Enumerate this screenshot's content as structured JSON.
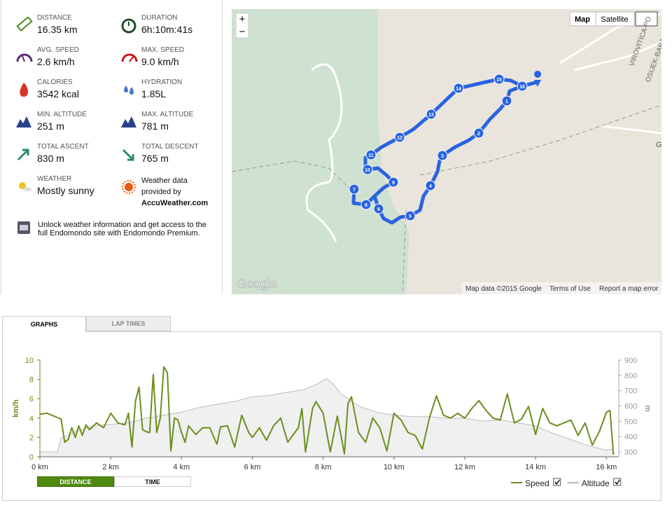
{
  "stats": [
    {
      "label": "DISTANCE",
      "value": "16.35 km"
    },
    {
      "label": "DURATION",
      "value": "6h:10m:41s"
    },
    {
      "label": "AVG. SPEED",
      "value": "2.6 km/h"
    },
    {
      "label": "MAX. SPEED",
      "value": "9.0 km/h"
    },
    {
      "label": "CALORIES",
      "value": "3542 kcal"
    },
    {
      "label": "HYDRATION",
      "value": "1.85L"
    },
    {
      "label": "MIN. ALTITUDE",
      "value": "251 m"
    },
    {
      "label": "MAX. ALTITUDE",
      "value": "781 m"
    },
    {
      "label": "TOTAL ASCENT",
      "value": "830 m"
    },
    {
      "label": "TOTAL DESCENT",
      "value": "765 m"
    },
    {
      "label": "WEATHER",
      "value": "Mostly sunny"
    }
  ],
  "weather_credit": {
    "text": "Weather data provided by",
    "source": "AccuWeather.com"
  },
  "premium_note": "Unlock weather information and get access to the full Endomondo site with Endomondo Premium.",
  "map": {
    "zoom_in": "+",
    "zoom_out": "−",
    "map_button": "Map",
    "satellite_button": "Satellite",
    "logo": "Google",
    "attribution": "Map data ©2015 Google",
    "terms": "Terms of Use",
    "report": "Report a map error",
    "road_labels": [
      "VIROVITICA-PO",
      "OSIJEK-BARA",
      "G"
    ],
    "markers": [
      "1",
      "2",
      "3",
      "4",
      "5",
      "6",
      "7",
      "8",
      "9",
      "10",
      "11",
      "12",
      "13",
      "14",
      "15",
      "16"
    ]
  },
  "tabs": [
    "GRAPHS",
    "LAP TIMES"
  ],
  "toggle": [
    "DISTANCE",
    "TIME"
  ],
  "chart_data": {
    "type": "line",
    "y_label": "km/h",
    "y2_label": "m",
    "xlim": [
      0,
      16.35
    ],
    "xticks": [
      {
        "value": 0,
        "label": "0 km"
      },
      {
        "value": 2,
        "label": "2 km"
      },
      {
        "value": 4,
        "label": "4 km"
      },
      {
        "value": 6,
        "label": "6 km"
      },
      {
        "value": 8,
        "label": "8 km"
      },
      {
        "value": 10,
        "label": "10 km"
      },
      {
        "value": 12,
        "label": "12 km"
      },
      {
        "value": 14,
        "label": "14 km"
      },
      {
        "value": 16,
        "label": "16 km"
      }
    ],
    "ylim": [
      0,
      10
    ],
    "yticks": [
      0,
      2,
      4,
      6,
      8,
      10
    ],
    "y2lim": [
      268,
      900
    ],
    "y2ticks": [
      300,
      400,
      500,
      600,
      700,
      800,
      900
    ],
    "series": [
      {
        "name": "Speed",
        "color": "#6a8e1e",
        "x": [
          0,
          0.2,
          0.4,
          0.6,
          0.7,
          0.8,
          0.9,
          1.0,
          1.1,
          1.2,
          1.3,
          1.4,
          1.6,
          1.8,
          2.0,
          2.2,
          2.4,
          2.5,
          2.6,
          2.7,
          2.8,
          2.9,
          3.0,
          3.1,
          3.2,
          3.3,
          3.4,
          3.5,
          3.6,
          3.7,
          3.8,
          3.9,
          4.0,
          4.1,
          4.2,
          4.4,
          4.6,
          4.8,
          5.0,
          5.1,
          5.3,
          5.5,
          5.7,
          5.9,
          6.0,
          6.2,
          6.4,
          6.6,
          6.8,
          7.0,
          7.3,
          7.4,
          7.5,
          7.7,
          7.8,
          8.0,
          8.2,
          8.4,
          8.6,
          8.7,
          8.8,
          9.0,
          9.2,
          9.4,
          9.6,
          9.8,
          10.0,
          10.2,
          10.4,
          10.6,
          10.8,
          11.0,
          11.2,
          11.4,
          11.6,
          11.8,
          12.0,
          12.2,
          12.4,
          12.6,
          12.8,
          13.0,
          13.2,
          13.4,
          13.6,
          13.8,
          14.0,
          14.2,
          14.4,
          14.6,
          14.8,
          15.0,
          15.2,
          15.4,
          15.6,
          15.8,
          16.0,
          16.1,
          16.2
        ],
        "values": [
          4.4,
          4.5,
          4.2,
          3.9,
          1.5,
          1.8,
          3.0,
          2.0,
          3.2,
          2.2,
          3.3,
          2.8,
          3.5,
          3.0,
          4.5,
          3.5,
          3.3,
          4.5,
          1.0,
          5.8,
          7.2,
          2.8,
          2.6,
          2.5,
          8.5,
          2.5,
          4.0,
          9.3,
          8.7,
          0.6,
          4.0,
          3.8,
          2.5,
          1.5,
          3.2,
          2.3,
          3.0,
          3.0,
          1.3,
          3.1,
          3.2,
          1.0,
          4.3,
          2.5,
          2.0,
          3.0,
          1.7,
          3.2,
          4.0,
          1.5,
          3.0,
          5.0,
          0.5,
          5.0,
          5.7,
          4.5,
          0.5,
          4.2,
          0.3,
          5.5,
          6.2,
          2.5,
          1.5,
          4.0,
          3.0,
          0.6,
          4.5,
          3.8,
          2.5,
          2.2,
          0.8,
          4.0,
          6.3,
          4.3,
          4.0,
          4.5,
          4.0,
          5.0,
          5.8,
          4.8,
          4.0,
          3.8,
          6.5,
          3.5,
          3.9,
          5.2,
          2.3,
          5.0,
          3.5,
          3.2,
          3.5,
          3.8,
          2.2,
          3.5,
          1.2,
          2.6,
          4.6,
          4.8,
          0.2
        ]
      },
      {
        "name": "Altitude",
        "color": "#bbbbbb",
        "axis": "y2",
        "x": [
          0,
          0.3,
          0.5,
          0.6,
          1.0,
          1.5,
          2.0,
          2.5,
          3.0,
          3.5,
          4.0,
          4.5,
          5.0,
          5.5,
          6.0,
          6.5,
          7.0,
          7.5,
          7.8,
          8.1,
          8.3,
          8.5,
          9.0,
          9.5,
          10.0,
          10.5,
          11.0,
          11.5,
          12.0,
          12.5,
          13.0,
          13.5,
          14.0,
          14.5,
          15.0,
          15.5,
          16.0,
          16.2
        ],
        "values": [
          300,
          300,
          300,
          390,
          430,
          470,
          480,
          490,
          520,
          540,
          560,
          590,
          610,
          630,
          660,
          670,
          690,
          710,
          740,
          780,
          740,
          680,
          600,
          560,
          540,
          530,
          530,
          520,
          520,
          500,
          510,
          490,
          470,
          420,
          380,
          340,
          310,
          320
        ]
      }
    ]
  }
}
